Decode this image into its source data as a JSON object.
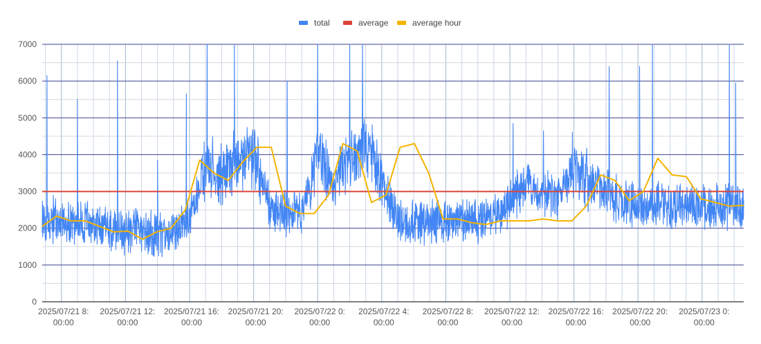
{
  "chart_data": {
    "type": "line",
    "title": "",
    "xlabel": "",
    "ylabel": "",
    "ylim": [
      0,
      7000
    ],
    "yticks": [
      "0",
      "1000",
      "2000",
      "3000",
      "4000",
      "5000",
      "6000",
      "7000"
    ],
    "xticks": [
      {
        "line1": "2025/07/21 8:",
        "line2": "00:00"
      },
      {
        "line1": "2025/07/21 12:",
        "line2": "00:00"
      },
      {
        "line1": "2025/07/21 16:",
        "line2": "00:00"
      },
      {
        "line1": "2025/07/21 20:",
        "line2": "00:00"
      },
      {
        "line1": "2025/07/22 0:",
        "line2": "00:00"
      },
      {
        "line1": "2025/07/22 4:",
        "line2": "00:00"
      },
      {
        "line1": "2025/07/22 8:",
        "line2": "00:00"
      },
      {
        "line1": "2025/07/22 12:",
        "line2": "00:00"
      },
      {
        "line1": "2025/07/22 16:",
        "line2": "00:00"
      },
      {
        "line1": "2025/07/22 20:",
        "line2": "00:00"
      },
      {
        "line1": "2025/07/23 0:",
        "line2": "00:00"
      }
    ],
    "xrange_hours": [
      6.8,
      50.6
    ],
    "grid": true,
    "legend_position": "top",
    "series": [
      {
        "name": "total",
        "color": "#4285f4",
        "values_note_hours": [
          6.8,
          8,
          9,
          10,
          11,
          12,
          13,
          14,
          15,
          16,
          17,
          18,
          19,
          20,
          21,
          22,
          23,
          24,
          25,
          26,
          27,
          28,
          29,
          30,
          31,
          32,
          33,
          34,
          35,
          36,
          37,
          38,
          39,
          40,
          41,
          42,
          43,
          44,
          45,
          46,
          47,
          48,
          49,
          50,
          50.6
        ],
        "level": [
          2300,
          2200,
          2150,
          2050,
          1950,
          1900,
          1950,
          1800,
          1850,
          2300,
          3600,
          3400,
          3700,
          4100,
          2500,
          2350,
          2400,
          4100,
          3000,
          4000,
          4300,
          3300,
          2250,
          2200,
          2150,
          2200,
          2200,
          2250,
          2300,
          2700,
          3300,
          3000,
          2800,
          3700,
          3300,
          3000,
          2700,
          2600,
          2600,
          2600,
          2600,
          2600,
          2600,
          2600,
          2600
        ],
        "spikes": [
          [
            7.1,
            6150
          ],
          [
            9.0,
            5500
          ],
          [
            11.5,
            6550
          ],
          [
            14.0,
            3850
          ],
          [
            15.8,
            5650
          ],
          [
            17.1,
            7000
          ],
          [
            18.8,
            7000
          ],
          [
            22.1,
            6000
          ],
          [
            24.0,
            7000
          ],
          [
            26.0,
            7000
          ],
          [
            26.8,
            7000
          ],
          [
            36.2,
            4850
          ],
          [
            38.1,
            4650
          ],
          [
            42.2,
            6400
          ],
          [
            44.1,
            6400
          ],
          [
            44.9,
            7000
          ],
          [
            49.7,
            7000
          ],
          [
            50.1,
            5950
          ]
        ]
      },
      {
        "name": "average",
        "color": "#db4437",
        "values": [
          3000,
          3000
        ]
      },
      {
        "name": "average hour",
        "color": "#f4b400",
        "values": [
          2050,
          2330,
          2200,
          2200,
          2050,
          1900,
          1920,
          1700,
          1900,
          2000,
          2500,
          3850,
          3500,
          3300,
          3800,
          4200,
          4200,
          2600,
          2400,
          2400,
          2900,
          4300,
          4100,
          2700,
          2900,
          4200,
          4300,
          3500,
          2250,
          2250,
          2150,
          2100,
          2200,
          2200,
          2200,
          2250,
          2200,
          2200,
          2600,
          3450,
          3300,
          2750,
          3000,
          3900,
          3450,
          3400,
          2800,
          2700,
          2600,
          2620
        ]
      }
    ]
  }
}
